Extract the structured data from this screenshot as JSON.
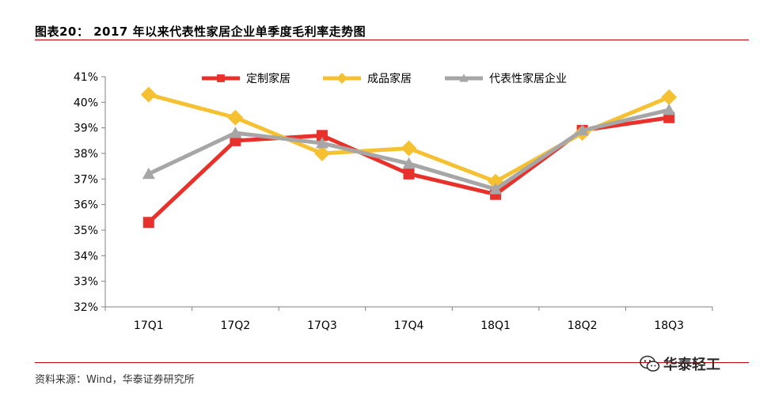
{
  "header": {
    "title": "图表20：  2017 年以来代表性家居企业单季度毛利率走势图"
  },
  "footer": {
    "source": "资料来源：Wind，华泰证券研究所",
    "watermark": "华泰轻工",
    "watermark_icon": "wechat-icon"
  },
  "chart_data": {
    "type": "line",
    "title": "",
    "xlabel": "",
    "ylabel": "",
    "categories": [
      "17Q1",
      "17Q2",
      "17Q3",
      "17Q4",
      "18Q1",
      "18Q2",
      "18Q3"
    ],
    "ylim": [
      32,
      41
    ],
    "y_ticks": [
      32,
      33,
      34,
      35,
      36,
      37,
      38,
      39,
      40,
      41
    ],
    "y_tick_labels": [
      "32%",
      "33%",
      "34%",
      "35%",
      "36%",
      "37%",
      "38%",
      "39%",
      "40%",
      "41%"
    ],
    "grid": false,
    "legend_position": "top",
    "series": [
      {
        "name": "定制家居",
        "color": "#e8312a",
        "marker": "square",
        "values": [
          35.3,
          38.5,
          38.7,
          37.2,
          36.4,
          38.9,
          39.4
        ]
      },
      {
        "name": "成品家居",
        "color": "#f5c133",
        "marker": "diamond",
        "values": [
          40.3,
          39.4,
          38.0,
          38.2,
          36.9,
          38.8,
          40.2
        ]
      },
      {
        "name": "代表性家居企业",
        "color": "#a6a6a6",
        "marker": "triangle",
        "values": [
          37.2,
          38.8,
          38.4,
          37.6,
          36.6,
          38.9,
          39.7
        ]
      }
    ]
  }
}
